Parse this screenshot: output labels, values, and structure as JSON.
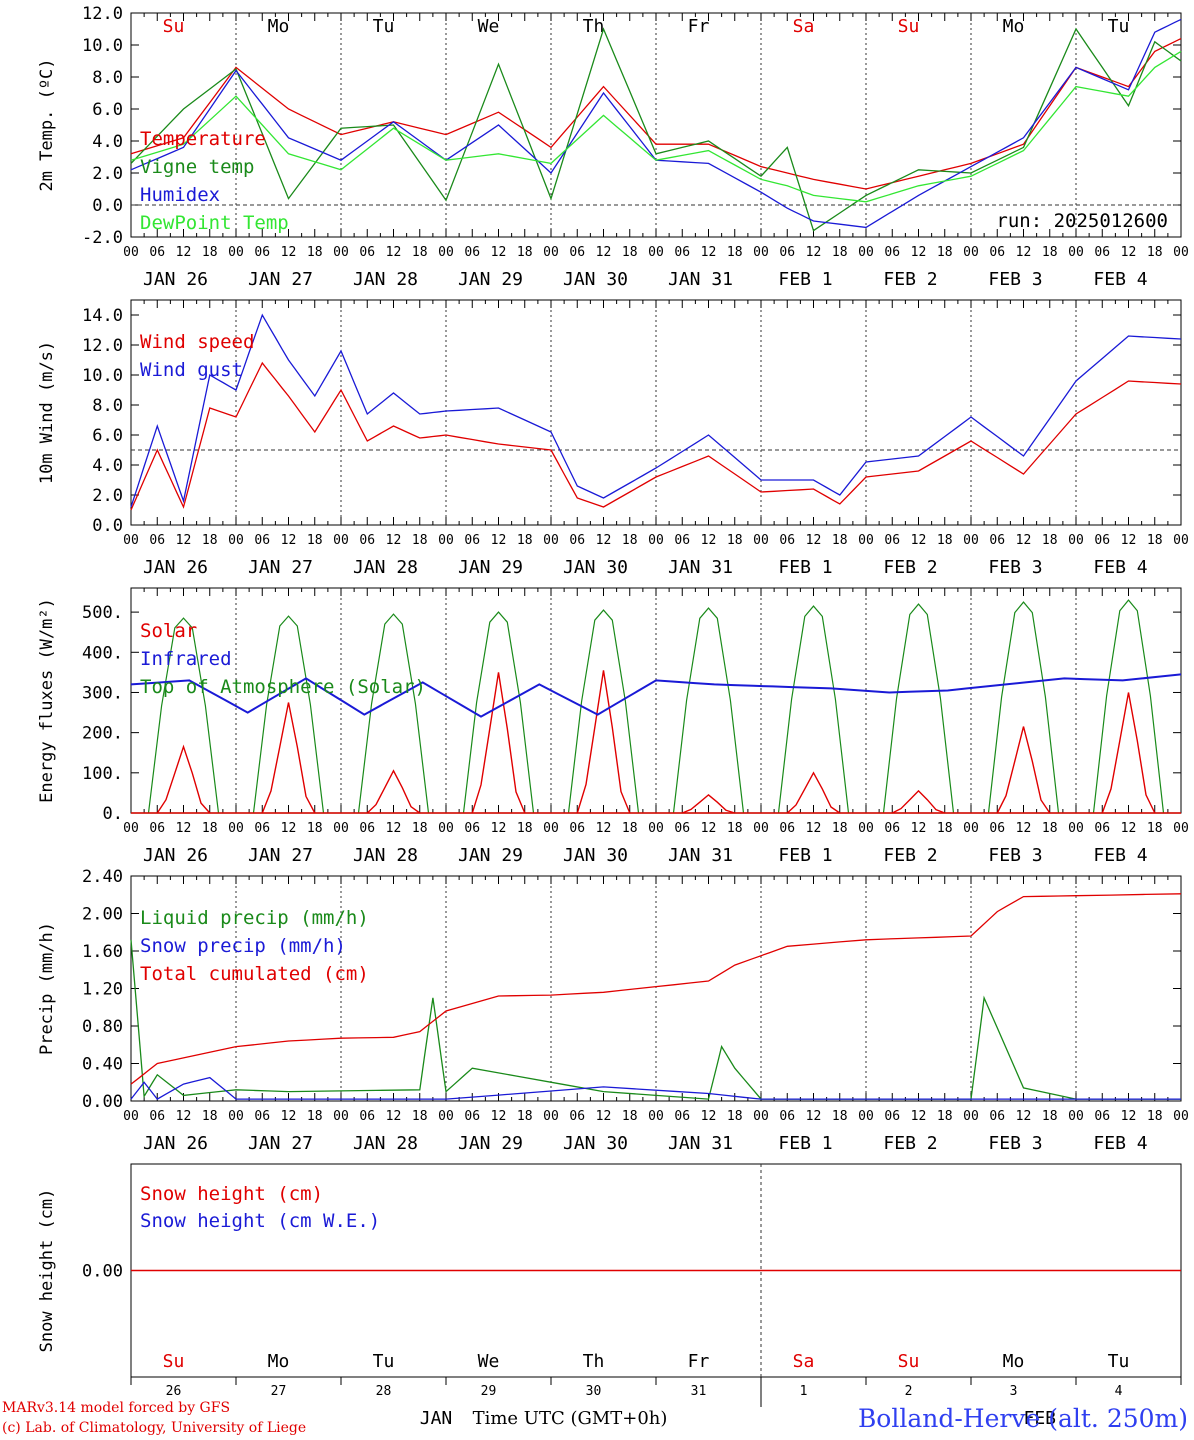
{
  "chart_data": [
    {
      "type": "line",
      "ylabel": "2m Temp. (ºC)",
      "ylim": [
        -2.0,
        12.0
      ],
      "yticks": [
        "12.0",
        "10.0",
        "8.0",
        "6.0",
        "4.0",
        "2.0",
        "0.0",
        "-2.0"
      ],
      "reference_line": 0.0,
      "x_hours": [
        0,
        12,
        24,
        36,
        48,
        60,
        72,
        84,
        96,
        108,
        120,
        132,
        144,
        150,
        156,
        168,
        180,
        192,
        204,
        216,
        228,
        234,
        240
      ],
      "weekdays": [
        {
          "label": "Su",
          "color": "#e00000"
        },
        {
          "label": "Mo",
          "color": "#000000"
        },
        {
          "label": "Tu",
          "color": "#000000"
        },
        {
          "label": "We",
          "color": "#000000"
        },
        {
          "label": "Th",
          "color": "#000000"
        },
        {
          "label": "Fr",
          "color": "#000000"
        },
        {
          "label": "Sa",
          "color": "#e00000"
        },
        {
          "label": "Su",
          "color": "#e00000"
        },
        {
          "label": "Mo",
          "color": "#000000"
        },
        {
          "label": "Tu",
          "color": "#000000"
        }
      ],
      "annotation": "run: 2025012600",
      "series": [
        {
          "name": "Temperature",
          "color": "#e00000",
          "values": [
            3.2,
            4.2,
            8.6,
            6.0,
            4.4,
            5.2,
            4.4,
            5.8,
            3.6,
            7.4,
            3.8,
            3.8,
            2.4,
            2.0,
            1.6,
            1.0,
            1.8,
            2.6,
            3.8,
            8.6,
            7.4,
            9.6,
            10.4
          ]
        },
        {
          "name": "Vigne temp",
          "color": "#1a8a1a",
          "values": [
            2.6,
            6.0,
            8.5,
            0.4,
            4.8,
            5.0,
            0.3,
            8.8,
            0.4,
            11.0,
            3.2,
            4.0,
            1.8,
            3.6,
            -1.6,
            0.6,
            2.2,
            2.0,
            3.6,
            11.0,
            6.2,
            10.2,
            9.0
          ]
        },
        {
          "name": "Humidex",
          "color": "#1a1ad6",
          "values": [
            2.2,
            3.6,
            8.4,
            4.2,
            2.8,
            5.2,
            2.8,
            5.0,
            2.0,
            7.0,
            2.8,
            2.6,
            0.8,
            -0.2,
            -1.0,
            -1.4,
            0.6,
            2.4,
            4.2,
            8.6,
            7.2,
            10.8,
            11.6
          ]
        },
        {
          "name": "DewPoint Temp",
          "color": "#33e633",
          "values": [
            2.8,
            3.8,
            6.8,
            3.2,
            2.2,
            4.8,
            2.8,
            3.2,
            2.6,
            5.6,
            2.8,
            3.4,
            1.6,
            1.2,
            0.6,
            0.2,
            1.2,
            1.8,
            3.4,
            7.4,
            6.8,
            8.6,
            9.6
          ]
        }
      ]
    },
    {
      "type": "line",
      "ylabel": "10m Wind (m/s)",
      "ylim": [
        0.0,
        15.0
      ],
      "yticks": [
        "14.0",
        "12.0",
        "10.0",
        "8.0",
        "6.0",
        "4.0",
        "2.0",
        "0.0"
      ],
      "reference_line": 5.0,
      "x_hours": [
        0,
        6,
        12,
        18,
        24,
        30,
        36,
        42,
        48,
        54,
        60,
        66,
        72,
        84,
        96,
        102,
        108,
        120,
        132,
        144,
        156,
        162,
        168,
        180,
        192,
        204,
        216,
        228,
        240
      ],
      "series": [
        {
          "name": "Wind speed",
          "color": "#e00000",
          "values": [
            1.0,
            5.0,
            1.2,
            7.8,
            7.2,
            10.8,
            8.6,
            6.2,
            9.0,
            5.6,
            6.6,
            5.8,
            6.0,
            5.4,
            5.0,
            1.8,
            1.2,
            3.2,
            4.6,
            2.2,
            2.4,
            1.4,
            3.2,
            3.6,
            5.6,
            3.4,
            7.4,
            9.6,
            9.4
          ]
        },
        {
          "name": "Wind gust",
          "color": "#1a1ad6",
          "values": [
            1.2,
            6.6,
            1.6,
            10.0,
            9.0,
            14.0,
            11.0,
            8.6,
            11.6,
            7.4,
            8.8,
            7.4,
            7.6,
            7.8,
            6.2,
            2.6,
            1.8,
            3.8,
            6.0,
            3.0,
            3.0,
            2.0,
            4.2,
            4.6,
            7.2,
            4.6,
            9.6,
            12.6,
            12.4
          ]
        }
      ]
    },
    {
      "type": "line",
      "ylabel": "Energy fluxes (W/m²)",
      "ylim": [
        0,
        560
      ],
      "yticks": [
        "500.",
        "400.",
        "300.",
        "200.",
        "100.",
        "0."
      ],
      "series": [
        {
          "name": "Solar",
          "color": "#e00000",
          "peaks": [
            165,
            275,
            105,
            350,
            355,
            45,
            100,
            55,
            215,
            300
          ]
        },
        {
          "name": "Infrared",
          "color": "#1a1ad6",
          "values": [
            320,
            330,
            250,
            335,
            245,
            325,
            240,
            320,
            245,
            330,
            320,
            315,
            310,
            300,
            305,
            320,
            335,
            330,
            345
          ]
        },
        {
          "name": "Top of Atmosphere (Solar)",
          "color": "#1a8a1a",
          "peaks": [
            485,
            490,
            495,
            500,
            505,
            510,
            515,
            520,
            525,
            530
          ]
        }
      ]
    },
    {
      "type": "line",
      "ylabel": "Precip (mm/h)",
      "ylim": [
        0.0,
        2.4
      ],
      "yticks": [
        "2.40",
        "2.00",
        "1.60",
        "1.20",
        "0.80",
        "0.40",
        "0.00"
      ],
      "series": [
        {
          "name": "Liquid precip (mm/h)",
          "color": "#1a8a1a",
          "x_hours": [
            0,
            3,
            6,
            12,
            24,
            36,
            66,
            69,
            72,
            78,
            108,
            132,
            135,
            138,
            144,
            150,
            156,
            168,
            192,
            195,
            204,
            216,
            240
          ],
          "values": [
            1.72,
            0.05,
            0.28,
            0.06,
            0.12,
            0.1,
            0.12,
            1.1,
            0.1,
            0.35,
            0.1,
            0.02,
            0.58,
            0.35,
            0.02,
            0.02,
            0.02,
            0.02,
            0.02,
            1.1,
            0.14,
            0.02,
            0.02
          ]
        },
        {
          "name": "Snow precip (mm/h)",
          "color": "#1a1ad6",
          "x_hours": [
            0,
            3,
            6,
            12,
            18,
            24,
            36,
            72,
            108,
            132,
            144,
            168,
            240
          ],
          "values": [
            0.02,
            0.2,
            0.02,
            0.18,
            0.25,
            0.02,
            0.02,
            0.02,
            0.15,
            0.08,
            0.02,
            0.02,
            0.02
          ]
        },
        {
          "name": "Total cumulated (cm)",
          "color": "#e00000",
          "x_hours": [
            0,
            6,
            12,
            24,
            36,
            48,
            60,
            66,
            72,
            84,
            96,
            108,
            120,
            132,
            138,
            150,
            168,
            180,
            192,
            198,
            204,
            216,
            240
          ],
          "values": [
            0.18,
            0.4,
            0.46,
            0.58,
            0.64,
            0.67,
            0.68,
            0.74,
            0.96,
            1.12,
            1.13,
            1.16,
            1.22,
            1.28,
            1.45,
            1.65,
            1.72,
            1.74,
            1.76,
            2.02,
            2.18,
            2.19,
            2.21
          ]
        }
      ]
    },
    {
      "type": "line",
      "ylabel": "Snow height (cm)",
      "ylim": [
        -1.0,
        1.0
      ],
      "yticks": [
        "0.00"
      ],
      "series": [
        {
          "name": "Snow height (cm)",
          "color": "#e00000",
          "values": [
            0.0,
            0.0
          ]
        },
        {
          "name": "Snow height (cm W.E.)",
          "color": "#1a1ad6",
          "values": [
            0.0,
            0.0
          ]
        }
      ],
      "weekdays": [
        {
          "label": "Su",
          "color": "#e00000"
        },
        {
          "label": "Mo",
          "color": "#000000"
        },
        {
          "label": "Tu",
          "color": "#000000"
        },
        {
          "label": "We",
          "color": "#000000"
        },
        {
          "label": "Th",
          "color": "#000000"
        },
        {
          "label": "Fr",
          "color": "#000000"
        },
        {
          "label": "Sa",
          "color": "#e00000"
        },
        {
          "label": "Su",
          "color": "#e00000"
        },
        {
          "label": "Mo",
          "color": "#000000"
        },
        {
          "label": "Tu",
          "color": "#000000"
        }
      ],
      "day_numbers": [
        "26",
        "27",
        "28",
        "29",
        "30",
        "31",
        "1",
        "2",
        "3",
        "4"
      ],
      "month_labels": [
        "JAN",
        "FEB"
      ],
      "xlabel": "Time UTC (GMT+0h)"
    }
  ],
  "x_axis": {
    "hour_ticks": [
      "00",
      "06",
      "12",
      "18"
    ],
    "final_hour": "00",
    "dates": [
      "JAN 26",
      "JAN 27",
      "JAN 28",
      "JAN 29",
      "JAN 30",
      "JAN 31",
      "FEB  1",
      "FEB  2",
      "FEB  3",
      "FEB  4"
    ]
  },
  "footer": {
    "credit_line1": "MARv3.14 model forced by GFS",
    "credit_line2": "(c) Lab. of Climatology, University of Liege",
    "station": "Bolland-Herve (alt. 250m)"
  }
}
